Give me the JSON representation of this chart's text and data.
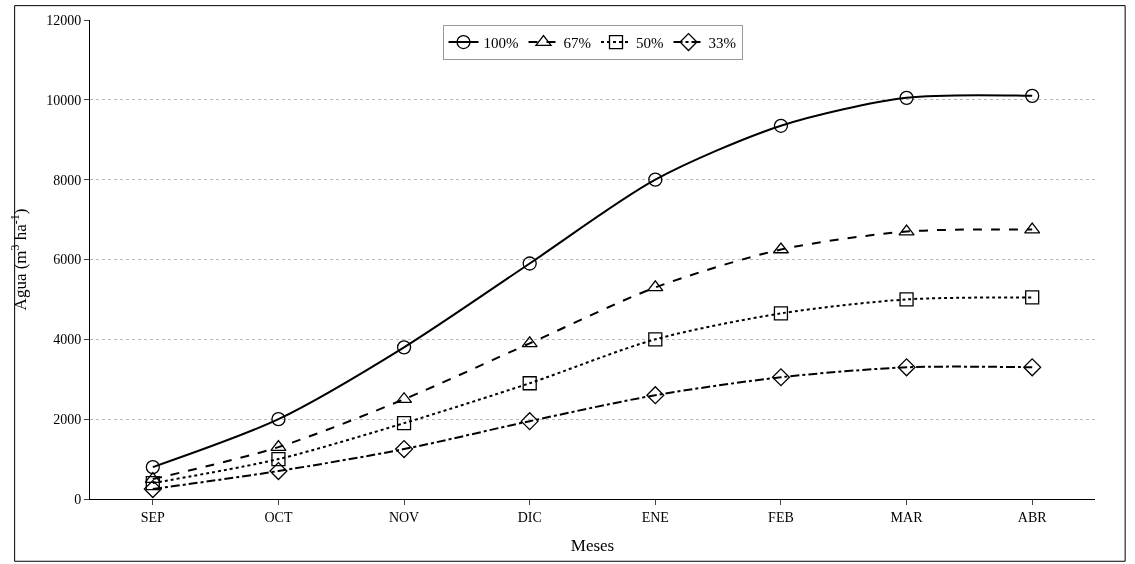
{
  "chart_data": {
    "type": "line",
    "xlabel": "Meses",
    "ylabel": "Agua (m$^{3}$ ha$^{-1}$)",
    "categories": [
      "SEP",
      "OCT",
      "NOV",
      "DIC",
      "ENE",
      "FEB",
      "MAR",
      "ABR"
    ],
    "ylim": [
      0,
      12000
    ],
    "yticks": [
      0,
      2000,
      4000,
      6000,
      8000,
      10000,
      12000
    ],
    "grid": "y",
    "legend": "top",
    "series": [
      {
        "name": "100%",
        "color": "#000000",
        "marker": "circle",
        "line_style": "solid",
        "values": [
          800,
          2000,
          3800,
          5900,
          8000,
          9350,
          10050,
          10100
        ]
      },
      {
        "name": "67%",
        "color": "#000000",
        "marker": "triangle",
        "line_style": "dashed",
        "values": [
          500,
          1300,
          2500,
          3900,
          5300,
          6250,
          6700,
          6750
        ]
      },
      {
        "name": "50%",
        "color": "#000000",
        "marker": "square",
        "line_style": "dotted",
        "values": [
          400,
          1000,
          1900,
          2900,
          4000,
          4650,
          5000,
          5050
        ]
      },
      {
        "name": "33%",
        "color": "#000000",
        "marker": "diamond",
        "line_style": "dashdot",
        "values": [
          250,
          700,
          1250,
          1950,
          2600,
          3050,
          3300,
          3300
        ]
      }
    ]
  }
}
